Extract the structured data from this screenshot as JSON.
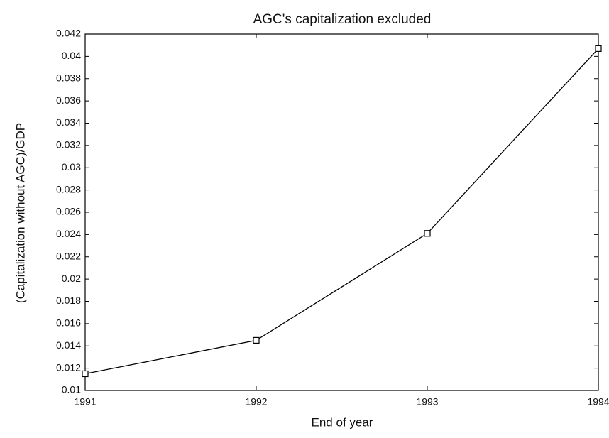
{
  "chart_data": {
    "type": "line",
    "title": "AGC's capitalization excluded",
    "xlabel": "End of year",
    "ylabel": "(Capitalization without AGC)/GDP",
    "x": [
      1991,
      1992,
      1993,
      1994
    ],
    "values": [
      0.0115,
      0.0145,
      0.0241,
      0.0407
    ],
    "color": "#000000",
    "marker": "square",
    "xlim": [
      1991,
      1994
    ],
    "xticks": [
      1991,
      1992,
      1993,
      1994
    ],
    "ylim": [
      0.01,
      0.042
    ],
    "yticks": [
      0.01,
      0.012,
      0.014,
      0.016,
      0.018,
      0.02,
      0.022,
      0.024,
      0.026,
      0.028,
      0.03,
      0.032,
      0.034,
      0.036,
      0.038,
      0.04,
      0.042
    ],
    "grid": false
  }
}
